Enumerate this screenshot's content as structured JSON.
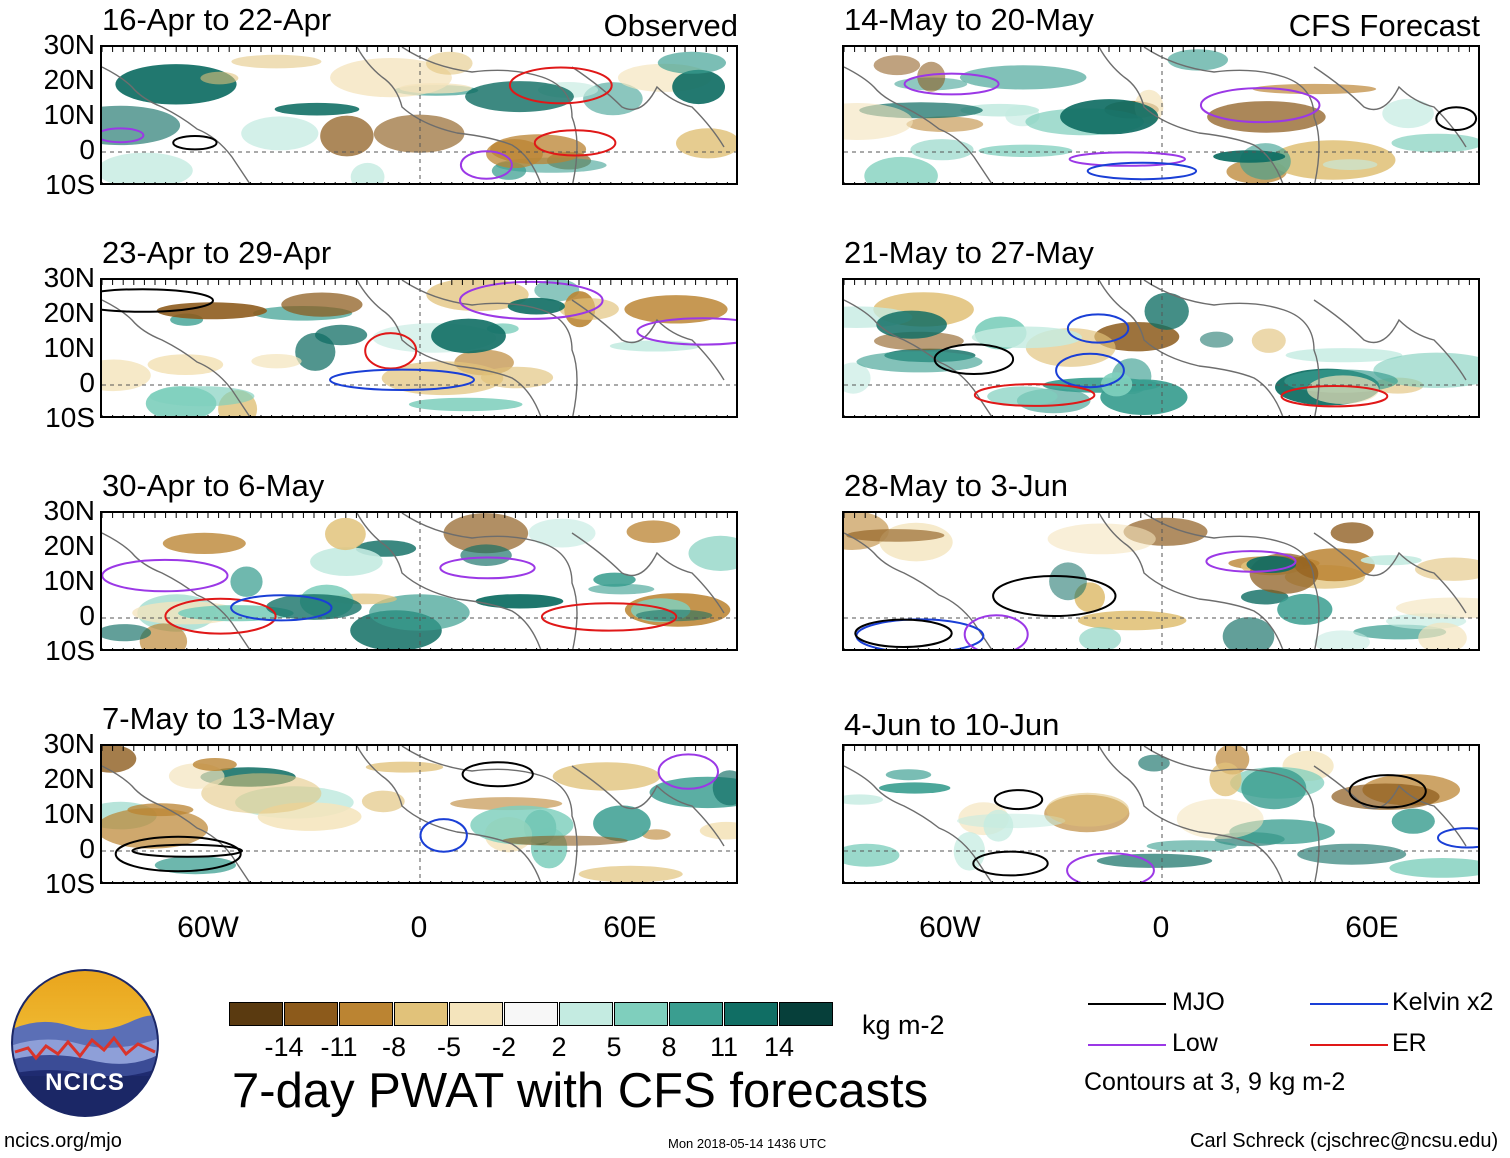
{
  "observed_label": "Observed",
  "forecast_label": "CFS Forecast",
  "panels_observed": [
    {
      "title": "16-Apr to 22-Apr"
    },
    {
      "title": "23-Apr to 29-Apr"
    },
    {
      "title": "30-Apr to 6-May"
    },
    {
      "title": "7-May to 13-May"
    }
  ],
  "panels_forecast": [
    {
      "title": "14-May to 20-May"
    },
    {
      "title": "21-May to 27-May"
    },
    {
      "title": "28-May to 3-Jun"
    },
    {
      "title": "4-Jun to 10-Jun"
    }
  ],
  "lat_labels": [
    "30N",
    "20N",
    "10N",
    "0",
    "10S"
  ],
  "lon_labels": [
    "60W",
    "0",
    "60E"
  ],
  "colorbar": {
    "ticks": [
      "-14",
      "-11",
      "-8",
      "-5",
      "-2",
      "2",
      "5",
      "8",
      "11",
      "14"
    ],
    "colors": [
      "#5a3a10",
      "#8c5a1b",
      "#bb8432",
      "#e1c27a",
      "#f4e4bc",
      "#f7f7f7",
      "#c4ebe1",
      "#7fcfbd",
      "#3a9e90",
      "#106e64",
      "#063f3a"
    ],
    "unit": "kg m-2"
  },
  "main_title": "7-day PWAT with CFS forecasts",
  "legend": {
    "items": [
      {
        "label": "MJO",
        "color": "#000000"
      },
      {
        "label": "Kelvin x2",
        "color": "#1a3fd6"
      },
      {
        "label": "Low",
        "color": "#9b38e6"
      },
      {
        "label": "ER",
        "color": "#e01818"
      }
    ],
    "note": "Contours at 3, 9 kg m-2"
  },
  "logo_text": "NCICS",
  "footer": {
    "website": "ncics.org/mjo",
    "timestamp": "Mon 2018-05-14 1436 UTC",
    "author": "Carl Schreck (cjschrec@ncsu.edu)"
  }
}
